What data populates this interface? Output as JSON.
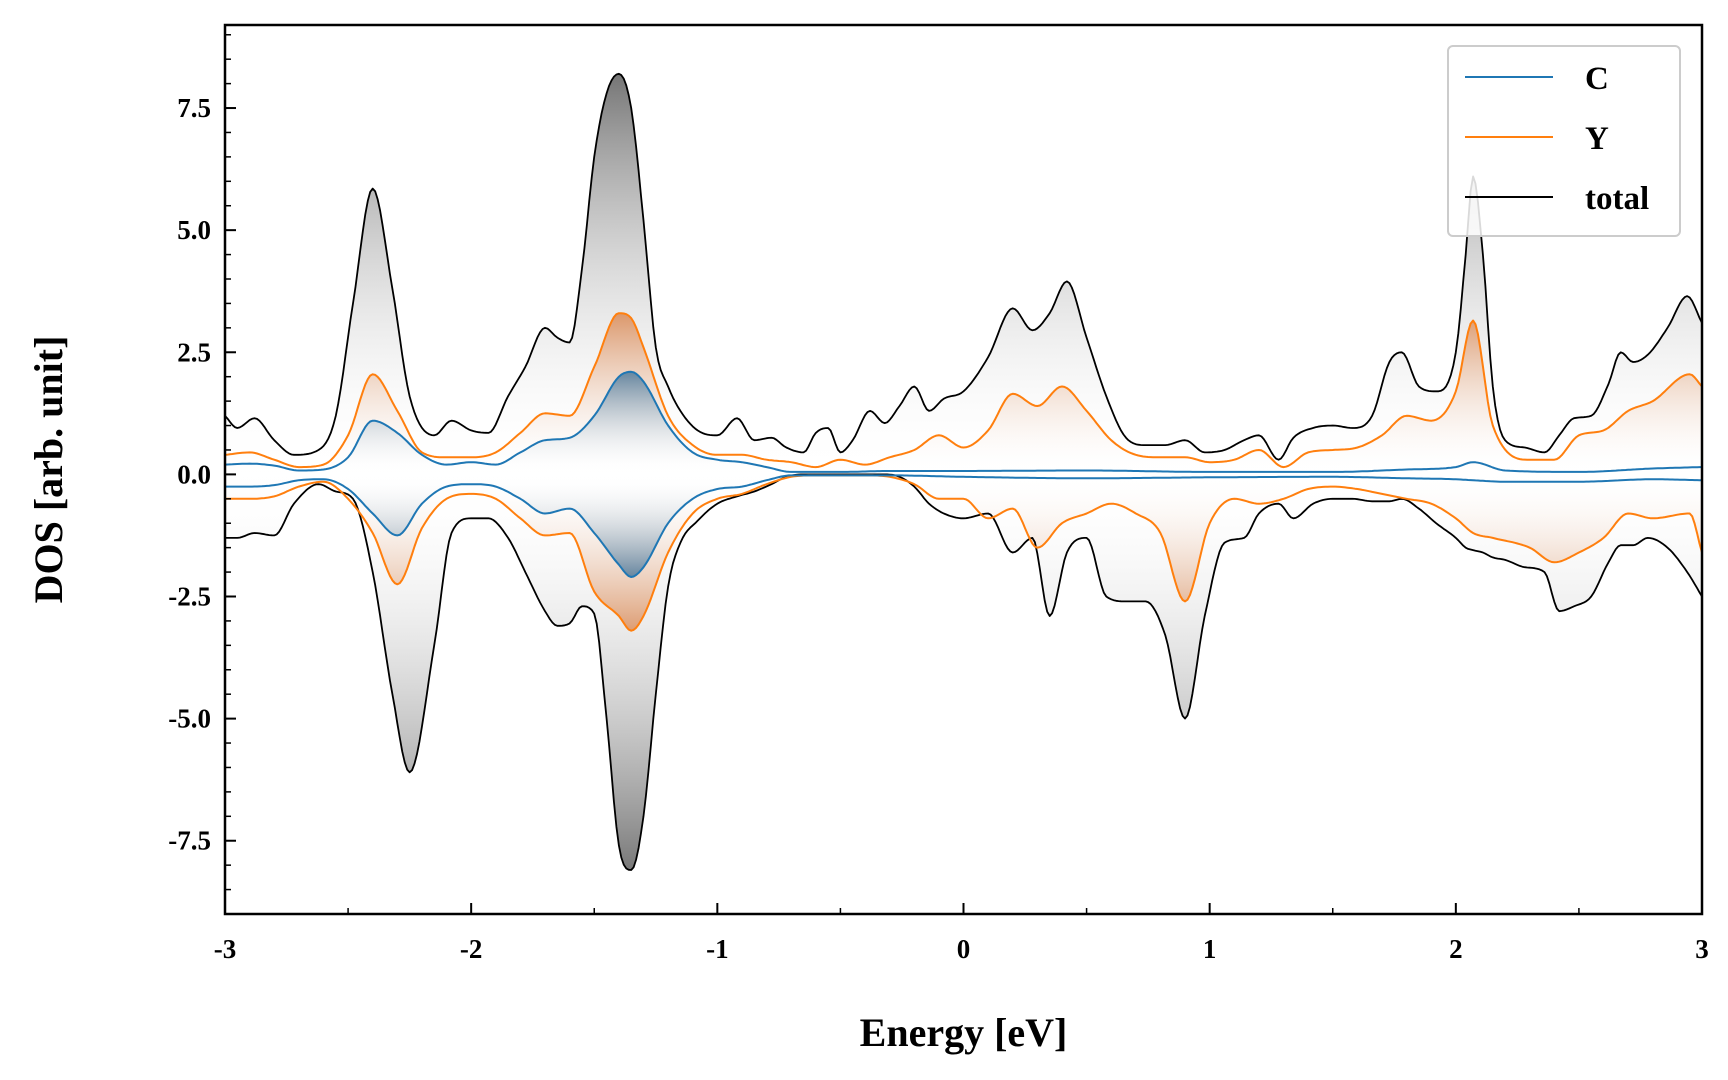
{
  "chart_data": {
    "type": "line",
    "title": "",
    "xlabel": "Energy [eV]",
    "ylabel": "DOS [arb. unit]",
    "xlim": [
      -3,
      3
    ],
    "ylim": [
      -9.0,
      9.2
    ],
    "xticks": [
      -3,
      -2,
      -1,
      0,
      1,
      2,
      3
    ],
    "xtick_labels": [
      "-3",
      "-2",
      "-1",
      "0",
      "1",
      "2",
      "3"
    ],
    "yticks": [
      -7.5,
      -5.0,
      -2.5,
      0.0,
      2.5,
      5.0,
      7.5
    ],
    "ytick_labels": [
      "-7.5",
      "-5.0",
      "-2.5",
      "0.0",
      "2.5",
      "5.0",
      "7.5"
    ],
    "grid": false,
    "legend_position": "top-right",
    "fill_between_up_and_down": true,
    "series": [
      {
        "name": "C",
        "color": "#1f77b4",
        "x": [
          -3.0,
          -2.9,
          -2.8,
          -2.7,
          -2.6,
          -2.5,
          -2.4,
          -2.3,
          -2.2,
          -2.1,
          -2.0,
          -1.9,
          -1.8,
          -1.7,
          -1.6,
          -1.5,
          -1.4,
          -1.35,
          -1.3,
          -1.2,
          -1.1,
          -1.0,
          -0.9,
          -0.8,
          -0.7,
          -0.5,
          -0.3,
          0.0,
          0.5,
          1.0,
          1.5,
          1.8,
          2.0,
          2.07,
          2.2,
          2.5,
          2.8,
          3.0
        ],
        "up": [
          0.2,
          0.22,
          0.18,
          0.08,
          0.1,
          0.35,
          1.1,
          0.85,
          0.4,
          0.2,
          0.25,
          0.2,
          0.45,
          0.7,
          0.75,
          1.2,
          2.0,
          2.1,
          1.9,
          1.0,
          0.45,
          0.3,
          0.25,
          0.15,
          0.05,
          0.05,
          0.07,
          0.07,
          0.08,
          0.05,
          0.05,
          0.1,
          0.15,
          0.25,
          0.08,
          0.05,
          0.12,
          0.15
        ],
        "down": [
          -0.25,
          -0.25,
          -0.22,
          -0.12,
          -0.1,
          -0.3,
          -0.8,
          -1.25,
          -0.6,
          -0.25,
          -0.2,
          -0.25,
          -0.5,
          -0.8,
          -0.7,
          -1.2,
          -1.85,
          -2.1,
          -1.9,
          -1.0,
          -0.5,
          -0.3,
          -0.25,
          -0.12,
          -0.02,
          -0.02,
          -0.02,
          -0.05,
          -0.08,
          -0.06,
          -0.05,
          -0.08,
          -0.1,
          -0.12,
          -0.15,
          -0.15,
          -0.1,
          -0.12
        ]
      },
      {
        "name": "Y",
        "color": "#ff7f0e",
        "x": [
          -3.0,
          -2.9,
          -2.8,
          -2.7,
          -2.6,
          -2.5,
          -2.4,
          -2.3,
          -2.2,
          -2.1,
          -2.0,
          -1.9,
          -1.8,
          -1.7,
          -1.6,
          -1.5,
          -1.4,
          -1.35,
          -1.3,
          -1.2,
          -1.1,
          -1.0,
          -0.9,
          -0.8,
          -0.7,
          -0.6,
          -0.5,
          -0.4,
          -0.3,
          -0.2,
          -0.1,
          0.0,
          0.1,
          0.2,
          0.3,
          0.4,
          0.5,
          0.6,
          0.7,
          0.8,
          0.9,
          1.0,
          1.1,
          1.2,
          1.3,
          1.4,
          1.5,
          1.6,
          1.7,
          1.8,
          1.9,
          2.0,
          2.07,
          2.15,
          2.3,
          2.4,
          2.5,
          2.6,
          2.7,
          2.8,
          2.95,
          3.0
        ],
        "up": [
          0.4,
          0.45,
          0.3,
          0.15,
          0.2,
          0.8,
          2.05,
          1.3,
          0.45,
          0.35,
          0.35,
          0.45,
          0.85,
          1.25,
          1.2,
          2.2,
          3.3,
          3.2,
          2.6,
          1.2,
          0.6,
          0.4,
          0.4,
          0.3,
          0.25,
          0.15,
          0.3,
          0.2,
          0.35,
          0.5,
          0.8,
          0.55,
          0.9,
          1.65,
          1.4,
          1.8,
          1.3,
          0.7,
          0.4,
          0.35,
          0.35,
          0.25,
          0.3,
          0.5,
          0.15,
          0.45,
          0.5,
          0.55,
          0.8,
          1.2,
          1.1,
          1.7,
          3.15,
          1.0,
          0.3,
          0.3,
          0.8,
          0.9,
          1.3,
          1.5,
          2.05,
          1.8
        ],
        "down": [
          -0.5,
          -0.5,
          -0.45,
          -0.25,
          -0.15,
          -0.5,
          -1.2,
          -2.25,
          -1.1,
          -0.5,
          -0.4,
          -0.5,
          -0.9,
          -1.25,
          -1.2,
          -2.4,
          -2.9,
          -3.2,
          -2.9,
          -1.6,
          -0.8,
          -0.5,
          -0.4,
          -0.2,
          -0.05,
          -0.02,
          -0.02,
          -0.02,
          -0.05,
          -0.2,
          -0.5,
          -0.5,
          -0.9,
          -0.7,
          -1.5,
          -1.0,
          -0.8,
          -0.6,
          -0.8,
          -1.2,
          -2.6,
          -1.0,
          -0.5,
          -0.6,
          -0.5,
          -0.3,
          -0.25,
          -0.3,
          -0.4,
          -0.5,
          -0.6,
          -0.9,
          -1.2,
          -1.3,
          -1.5,
          -1.8,
          -1.6,
          -1.3,
          -0.8,
          -0.9,
          -0.8,
          -1.6
        ]
      },
      {
        "name": "total",
        "color": "#000000",
        "x": [
          -3.0,
          -2.95,
          -2.88,
          -2.8,
          -2.72,
          -2.62,
          -2.55,
          -2.48,
          -2.4,
          -2.32,
          -2.25,
          -2.15,
          -2.08,
          -2.0,
          -1.93,
          -1.85,
          -1.78,
          -1.7,
          -1.65,
          -1.6,
          -1.55,
          -1.5,
          -1.45,
          -1.4,
          -1.35,
          -1.3,
          -1.25,
          -1.2,
          -1.15,
          -1.08,
          -1.0,
          -0.92,
          -0.85,
          -0.78,
          -0.72,
          -0.65,
          -0.6,
          -0.55,
          -0.5,
          -0.45,
          -0.38,
          -0.32,
          -0.26,
          -0.2,
          -0.14,
          -0.08,
          0.0,
          0.1,
          0.2,
          0.28,
          0.35,
          0.42,
          0.5,
          0.58,
          0.66,
          0.74,
          0.82,
          0.9,
          0.98,
          1.06,
          1.14,
          1.2,
          1.28,
          1.34,
          1.42,
          1.5,
          1.58,
          1.66,
          1.73,
          1.78,
          1.85,
          1.92,
          2.0,
          2.04,
          2.07,
          2.11,
          2.15,
          2.2,
          2.28,
          2.36,
          2.42,
          2.48,
          2.55,
          2.62,
          2.67,
          2.72,
          2.78,
          2.86,
          2.94,
          3.0
        ],
        "up": [
          1.2,
          0.95,
          1.15,
          0.7,
          0.4,
          0.5,
          1.2,
          3.5,
          5.85,
          3.8,
          1.6,
          0.8,
          1.1,
          0.9,
          0.85,
          1.6,
          2.2,
          3.0,
          2.8,
          2.7,
          4.2,
          6.5,
          7.8,
          8.2,
          7.5,
          5.2,
          2.6,
          1.8,
          1.3,
          0.9,
          0.8,
          1.15,
          0.7,
          0.75,
          0.55,
          0.45,
          0.85,
          0.95,
          0.45,
          0.7,
          1.3,
          1.05,
          1.4,
          1.8,
          1.3,
          1.55,
          1.7,
          2.4,
          3.4,
          2.95,
          3.3,
          3.95,
          2.8,
          1.6,
          0.75,
          0.6,
          0.6,
          0.7,
          0.45,
          0.5,
          0.7,
          0.8,
          0.3,
          0.75,
          0.95,
          1.0,
          0.95,
          1.2,
          2.3,
          2.5,
          1.8,
          1.7,
          2.5,
          4.5,
          6.1,
          4.5,
          1.8,
          0.7,
          0.55,
          0.45,
          0.8,
          1.15,
          1.2,
          1.85,
          2.5,
          2.3,
          2.45,
          3.0,
          3.65,
          3.1
        ],
        "down": [
          -1.3,
          -1.3,
          -1.2,
          -1.25,
          -0.6,
          -0.2,
          -0.35,
          -0.5,
          -2.0,
          -4.5,
          -6.1,
          -3.5,
          -1.2,
          -0.9,
          -0.9,
          -1.3,
          -2.0,
          -2.8,
          -3.1,
          -3.05,
          -2.7,
          -2.85,
          -5.0,
          -7.6,
          -8.1,
          -7.0,
          -4.5,
          -2.3,
          -1.4,
          -0.95,
          -0.6,
          -0.45,
          -0.35,
          -0.2,
          -0.05,
          0.0,
          0.0,
          0.0,
          0.0,
          0.0,
          0.0,
          0.0,
          -0.05,
          -0.25,
          -0.6,
          -0.8,
          -0.9,
          -0.8,
          -1.6,
          -1.3,
          -2.9,
          -1.6,
          -1.3,
          -2.5,
          -2.6,
          -2.6,
          -3.3,
          -5.0,
          -2.9,
          -1.4,
          -1.3,
          -0.8,
          -0.6,
          -0.9,
          -0.6,
          -0.5,
          -0.5,
          -0.55,
          -0.55,
          -0.5,
          -0.7,
          -1.0,
          -1.3,
          -1.5,
          -1.55,
          -1.6,
          -1.7,
          -1.75,
          -1.9,
          -2.0,
          -2.8,
          -2.7,
          -2.5,
          -1.8,
          -1.45,
          -1.45,
          -1.3,
          -1.5,
          -2.0,
          -2.5
        ]
      }
    ]
  }
}
